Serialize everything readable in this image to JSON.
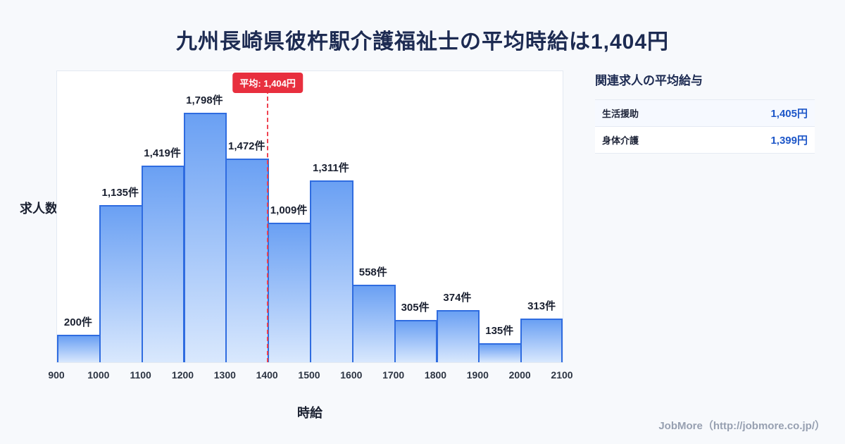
{
  "page": {
    "title": "九州長崎県彼杵駅介護福祉士の平均時給は1,404円",
    "footer": "JobMore（http://jobmore.co.jp/）"
  },
  "chart_data": {
    "type": "bar",
    "title": "九州長崎県彼杵駅介護福祉士の平均時給は1,404円",
    "xlabel": "時給",
    "ylabel": "求人数",
    "bin_edges": [
      900,
      1000,
      1100,
      1200,
      1300,
      1400,
      1500,
      1600,
      1700,
      1800,
      1900,
      2000,
      2100
    ],
    "values": [
      200,
      1135,
      1419,
      1798,
      1472,
      1009,
      1311,
      558,
      305,
      374,
      135,
      313
    ],
    "value_labels": [
      "200件",
      "1,135件",
      "1,419件",
      "1,798件",
      "1,472件",
      "1,009件",
      "1,311件",
      "558件",
      "305件",
      "374件",
      "135件",
      "313件"
    ],
    "ylim": [
      0,
      2100
    ],
    "grid": false,
    "legend": false,
    "average_line": {
      "x": 1400,
      "label": "平均: 1,404円",
      "color": "#e82f3e"
    }
  },
  "side_panel": {
    "heading": "関連求人の平均給与",
    "rows": [
      {
        "label": "生活援助",
        "value": "1,405円"
      },
      {
        "label": "身体介護",
        "value": "1,399円"
      }
    ]
  },
  "colors": {
    "accent_red": "#e82f3e",
    "bar_fill_top": "#6aa0f3",
    "bar_fill_bottom": "#d9e8fd",
    "bar_border": "#2f6ce0",
    "value_blue": "#1d56c8",
    "title_navy": "#1d2b52",
    "background": "#f7f9fc"
  }
}
